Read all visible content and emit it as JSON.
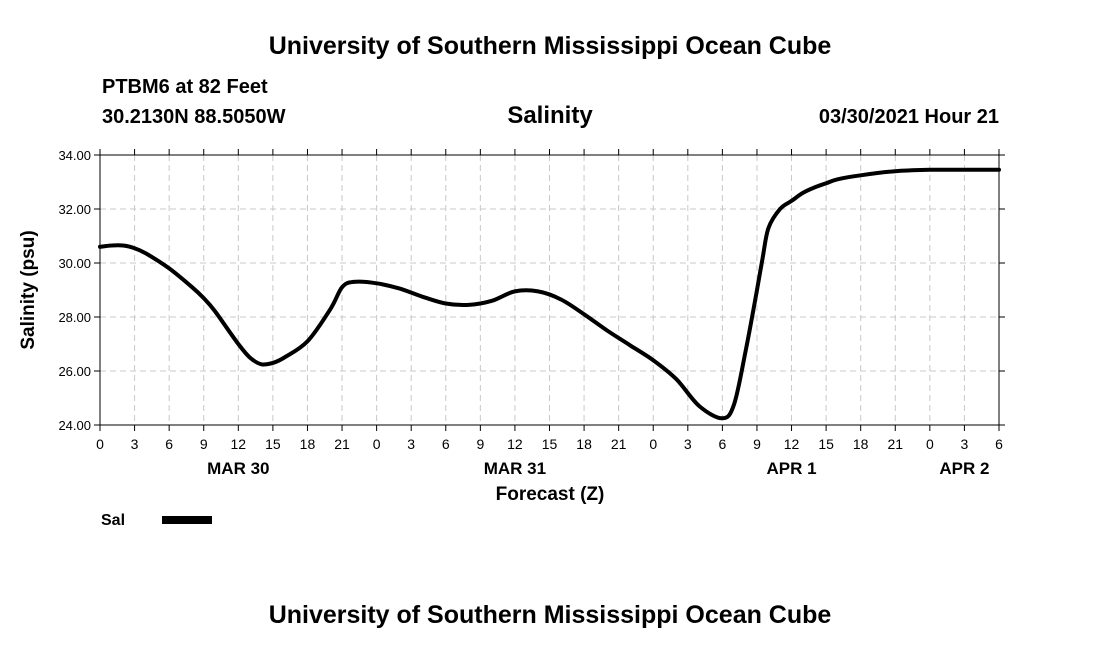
{
  "header": {
    "title_top": "University of Southern Mississippi Ocean Cube",
    "station": "PTBM6 at 82 Feet",
    "coords": "30.2130N  88.5050W",
    "datetime": "03/30/2021 Hour 21"
  },
  "footer": {
    "title_bottom": "University of Southern Mississippi Ocean Cube"
  },
  "chart_data": {
    "type": "line",
    "title": "Salinity",
    "xlabel": "Forecast (Z)",
    "ylabel": "Salinity (psu)",
    "xlim_hours": [
      0,
      78
    ],
    "ylim": [
      24,
      34
    ],
    "yticks": [
      "24.00",
      "26.00",
      "28.00",
      "30.00",
      "32.00",
      "34.00"
    ],
    "ytick_values": [
      24,
      26,
      28,
      30,
      32,
      34
    ],
    "xtick_hours": [
      0,
      3,
      6,
      9,
      12,
      15,
      18,
      21,
      24,
      27,
      30,
      33,
      36,
      39,
      42,
      45,
      48,
      51,
      54,
      57,
      60,
      63,
      66,
      69,
      72,
      75,
      78
    ],
    "xtick_labels": [
      "0",
      "3",
      "6",
      "9",
      "12",
      "15",
      "18",
      "21",
      "0",
      "3",
      "6",
      "9",
      "12",
      "15",
      "18",
      "21",
      "0",
      "3",
      "6",
      "9",
      "12",
      "15",
      "18",
      "21",
      "0",
      "3",
      "6"
    ],
    "date_labels": [
      {
        "text": "MAR 30",
        "hour": 12
      },
      {
        "text": "MAR 31",
        "hour": 36
      },
      {
        "text": "APR 1",
        "hour": 60
      },
      {
        "text": "APR 2",
        "hour": 75
      }
    ],
    "grid": true,
    "legend_position": "bottom-left",
    "series": [
      {
        "name": "Sal",
        "color": "#000000",
        "x": [
          0,
          1,
          2,
          3,
          4,
          6,
          8,
          9,
          10,
          12,
          13,
          14,
          15,
          16,
          18,
          20,
          21,
          22,
          24,
          26,
          28,
          30,
          32,
          34,
          36,
          38,
          40,
          42,
          44,
          46,
          48,
          50,
          52,
          54,
          55,
          56,
          57,
          57.5,
          58,
          59,
          60,
          61,
          62,
          63,
          64,
          66,
          69,
          72,
          75,
          78
        ],
        "values": [
          30.6,
          30.65,
          30.65,
          30.55,
          30.35,
          29.8,
          29.1,
          28.7,
          28.2,
          27.0,
          26.5,
          26.25,
          26.3,
          26.5,
          27.1,
          28.3,
          29.1,
          29.3,
          29.25,
          29.05,
          28.75,
          28.5,
          28.45,
          28.6,
          28.95,
          28.95,
          28.65,
          28.1,
          27.5,
          26.95,
          26.4,
          25.7,
          24.7,
          24.25,
          24.75,
          26.7,
          29.0,
          30.2,
          31.3,
          32.0,
          32.3,
          32.6,
          32.8,
          32.95,
          33.1,
          33.25,
          33.4,
          33.45,
          33.45,
          33.45
        ]
      }
    ]
  }
}
